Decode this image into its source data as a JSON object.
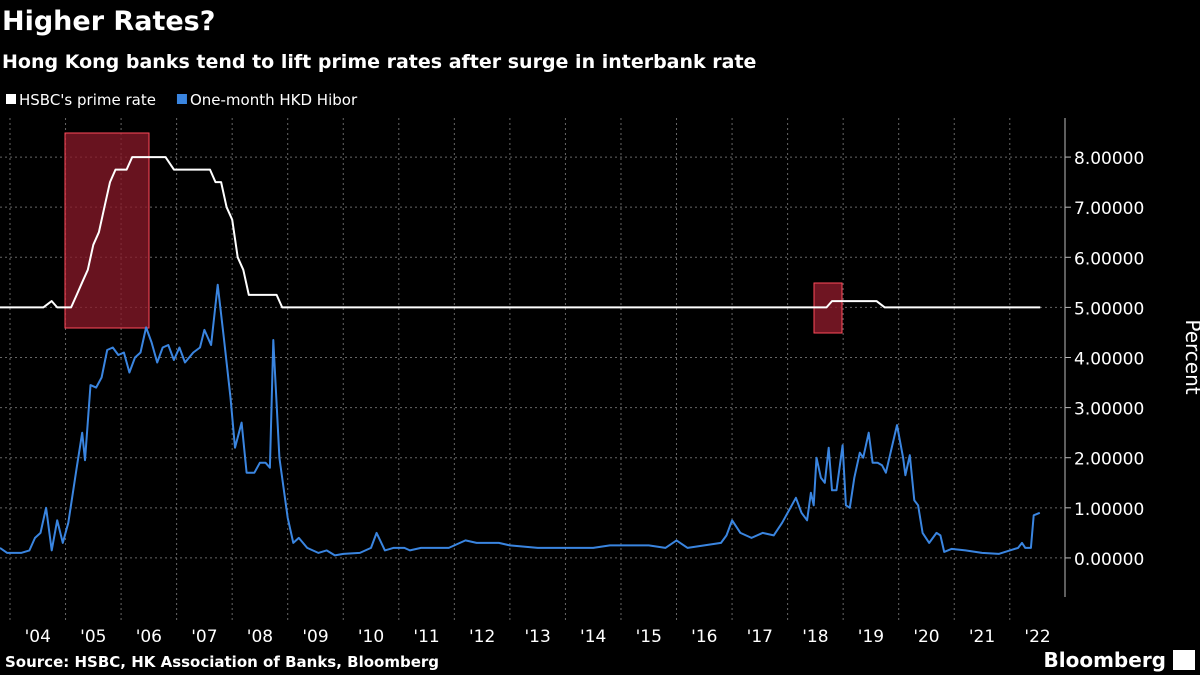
{
  "chart_data": {
    "type": "line",
    "title": "Higher Rates?",
    "subtitle": "Hong Kong banks tend to lift prime rates after surge in interbank rate",
    "y_label": "Percent",
    "source": "Source: HSBC, HK Association of Banks, Bloomberg",
    "brand": "Bloomberg",
    "xlim": [
      2003.82,
      2022.94
    ],
    "ylim": [
      -0.74,
      8.78
    ],
    "xticks": [
      {
        "value": 2004,
        "label": "'04"
      },
      {
        "value": 2005,
        "label": "'05"
      },
      {
        "value": 2006,
        "label": "'06"
      },
      {
        "value": 2007,
        "label": "'07"
      },
      {
        "value": 2008,
        "label": "'08"
      },
      {
        "value": 2009,
        "label": "'09"
      },
      {
        "value": 2010,
        "label": "'10"
      },
      {
        "value": 2011,
        "label": "'11"
      },
      {
        "value": 2012,
        "label": "'12"
      },
      {
        "value": 2013,
        "label": "'13"
      },
      {
        "value": 2014,
        "label": "'14"
      },
      {
        "value": 2015,
        "label": "'15"
      },
      {
        "value": 2016,
        "label": "'16"
      },
      {
        "value": 2017,
        "label": "'17"
      },
      {
        "value": 2018,
        "label": "'18"
      },
      {
        "value": 2019,
        "label": "'19"
      },
      {
        "value": 2020,
        "label": "'20"
      },
      {
        "value": 2021,
        "label": "'21"
      },
      {
        "value": 2022,
        "label": "'22"
      }
    ],
    "yticks": [
      {
        "value": 0,
        "label": "0.00000"
      },
      {
        "value": 1,
        "label": "1.00000"
      },
      {
        "value": 2,
        "label": "2.00000"
      },
      {
        "value": 3,
        "label": "3.00000"
      },
      {
        "value": 4,
        "label": "4.00000"
      },
      {
        "value": 5,
        "label": "5.00000"
      },
      {
        "value": 6,
        "label": "6.00000"
      },
      {
        "value": 7,
        "label": "7.00000"
      },
      {
        "value": 8,
        "label": "8.00000"
      }
    ],
    "grid": true,
    "series": [
      {
        "name": "HSBC's prime rate",
        "color": "#ffffff",
        "x": [
          2003.82,
          2004.6,
          2004.75,
          2004.85,
          2005.1,
          2005.2,
          2005.3,
          2005.4,
          2005.5,
          2005.6,
          2005.7,
          2005.8,
          2005.9,
          2006.1,
          2006.2,
          2006.8,
          2006.95,
          2007.6,
          2007.7,
          2007.8,
          2007.9,
          2008.0,
          2008.1,
          2008.2,
          2008.3,
          2008.8,
          2008.9,
          2018.7,
          2018.8,
          2019.6,
          2019.75,
          2022.55
        ],
        "values": [
          5,
          5,
          5.125,
          5,
          5,
          5.25,
          5.5,
          5.75,
          6.25,
          6.5,
          7,
          7.5,
          7.75,
          7.75,
          8,
          8,
          7.75,
          7.75,
          7.5,
          7.5,
          7,
          6.75,
          6,
          5.75,
          5.25,
          5.25,
          5,
          5,
          5.125,
          5.125,
          5,
          5
        ]
      },
      {
        "name": "One-month HKD Hibor",
        "color": "#3a85e0",
        "x": [
          2003.82,
          2003.95,
          2004.2,
          2004.35,
          2004.45,
          2004.55,
          2004.65,
          2004.75,
          2004.85,
          2004.95,
          2005.05,
          2005.2,
          2005.3,
          2005.35,
          2005.45,
          2005.55,
          2005.65,
          2005.75,
          2005.85,
          2005.95,
          2006.05,
          2006.15,
          2006.25,
          2006.35,
          2006.45,
          2006.55,
          2006.65,
          2006.75,
          2006.85,
          2006.95,
          2007.05,
          2007.15,
          2007.3,
          2007.42,
          2007.5,
          2007.62,
          2007.74,
          2007.85,
          2007.97,
          2008.05,
          2008.17,
          2008.26,
          2008.4,
          2008.5,
          2008.6,
          2008.68,
          2008.74,
          2008.85,
          2009.0,
          2009.1,
          2009.2,
          2009.35,
          2009.55,
          2009.7,
          2009.85,
          2010.0,
          2010.3,
          2010.5,
          2010.6,
          2010.75,
          2010.9,
          2011.1,
          2011.2,
          2011.4,
          2011.6,
          2011.9,
          2012.2,
          2012.4,
          2012.8,
          2013.0,
          2013.5,
          2014.5,
          2014.8,
          2015.0,
          2015.5,
          2015.8,
          2016.0,
          2016.2,
          2016.5,
          2016.8,
          2016.9,
          2017.0,
          2017.15,
          2017.35,
          2017.55,
          2017.75,
          2017.9,
          2018.05,
          2018.15,
          2018.25,
          2018.35,
          2018.42,
          2018.47,
          2018.52,
          2018.6,
          2018.67,
          2018.74,
          2018.8,
          2018.88,
          2018.99,
          2019.05,
          2019.12,
          2019.2,
          2019.3,
          2019.36,
          2019.46,
          2019.53,
          2019.62,
          2019.7,
          2019.77,
          2019.97,
          2020.08,
          2020.12,
          2020.2,
          2020.28,
          2020.35,
          2020.43,
          2020.55,
          2020.68,
          2020.75,
          2020.82,
          2020.95,
          2021.2,
          2021.5,
          2021.8,
          2022.0,
          2022.15,
          2022.22,
          2022.28,
          2022.38,
          2022.43,
          2022.54
        ],
        "values": [
          0.2,
          0.1,
          0.1,
          0.15,
          0.4,
          0.5,
          1.0,
          0.15,
          0.75,
          0.3,
          0.7,
          1.8,
          2.5,
          1.95,
          3.45,
          3.4,
          3.6,
          4.15,
          4.2,
          4.05,
          4.1,
          3.7,
          4.0,
          4.1,
          4.6,
          4.3,
          3.9,
          4.2,
          4.25,
          3.95,
          4.2,
          3.9,
          4.1,
          4.2,
          4.55,
          4.25,
          5.45,
          4.4,
          3.2,
          2.2,
          2.7,
          1.7,
          1.7,
          1.9,
          1.9,
          1.8,
          4.35,
          2.0,
          0.8,
          0.3,
          0.4,
          0.2,
          0.1,
          0.15,
          0.05,
          0.08,
          0.1,
          0.2,
          0.5,
          0.15,
          0.2,
          0.2,
          0.15,
          0.2,
          0.2,
          0.2,
          0.35,
          0.3,
          0.3,
          0.25,
          0.2,
          0.2,
          0.25,
          0.25,
          0.25,
          0.2,
          0.35,
          0.2,
          0.25,
          0.3,
          0.45,
          0.75,
          0.5,
          0.4,
          0.5,
          0.45,
          0.7,
          1.0,
          1.2,
          0.9,
          0.75,
          1.3,
          1.05,
          2.0,
          1.6,
          1.5,
          2.2,
          1.35,
          1.35,
          2.25,
          1.05,
          1.0,
          1.6,
          2.1,
          2.0,
          2.5,
          1.9,
          1.9,
          1.85,
          1.7,
          2.65,
          2.0,
          1.65,
          2.05,
          1.15,
          1.05,
          0.5,
          0.3,
          0.5,
          0.45,
          0.12,
          0.18,
          0.15,
          0.1,
          0.08,
          0.15,
          0.2,
          0.3,
          0.2,
          0.2,
          0.85,
          0.9
        ]
      }
    ]
  }
}
